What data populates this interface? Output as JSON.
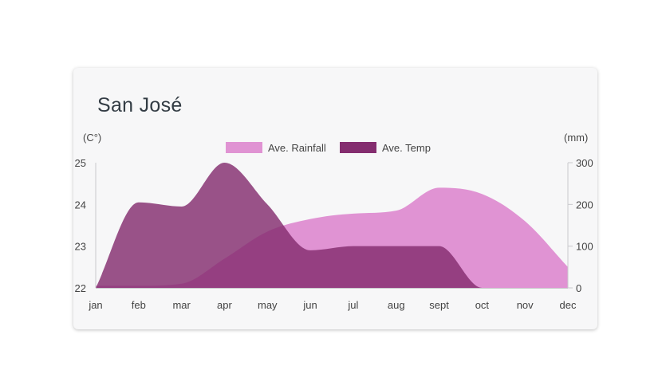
{
  "chart_data": {
    "type": "area",
    "title": "San José",
    "categories": [
      "jan",
      "feb",
      "mar",
      "apr",
      "may",
      "jun",
      "jul",
      "aug",
      "sept",
      "oct",
      "nov",
      "dec"
    ],
    "y_left": {
      "label": "(C°)",
      "ylim": [
        22,
        25
      ],
      "ticks": [
        "22",
        "23",
        "24",
        "25"
      ]
    },
    "y_right": {
      "label": "(mm)",
      "ylim": [
        0,
        300
      ],
      "ticks": [
        "0",
        "100",
        "200",
        "300"
      ]
    },
    "legend_position": "top-center",
    "grid": false,
    "series": [
      {
        "name": "Ave. Rainfall",
        "axis": "right",
        "color": "#e093d3",
        "values": [
          5,
          5,
          10,
          70,
          135,
          165,
          178,
          185,
          240,
          225,
          160,
          50
        ]
      },
      {
        "name": "Ave. Temp",
        "axis": "left",
        "color": "#842d6f",
        "values": [
          22.0,
          24.05,
          23.95,
          25.0,
          24.0,
          22.9,
          23.0,
          23.0,
          23.0,
          22.0,
          22.0,
          22.0
        ]
      }
    ]
  }
}
